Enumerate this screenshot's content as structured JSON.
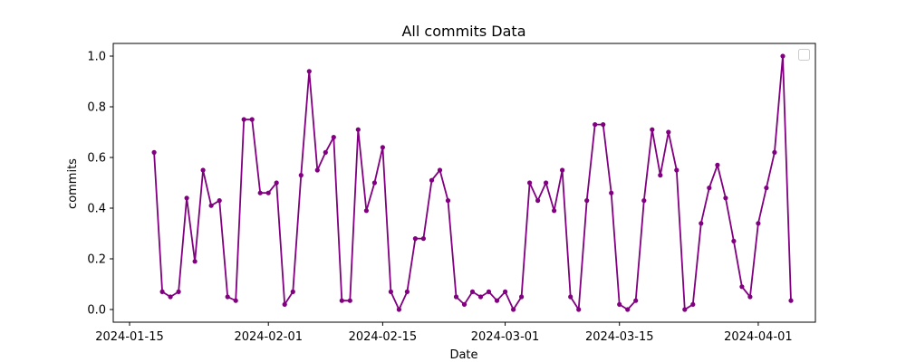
{
  "chart_data": {
    "type": "line",
    "title": "All commits Data",
    "xlabel": "Date",
    "ylabel": "commits",
    "x_start": "2024-01-18",
    "xlim": [
      "2024-01-13",
      "2024-04-08"
    ],
    "ylim": [
      -0.05,
      1.05
    ],
    "x_ticks": [
      "2024-01-15",
      "2024-02-01",
      "2024-02-15",
      "2024-03-01",
      "2024-03-15",
      "2024-04-01"
    ],
    "y_ticks": [
      "0.0",
      "0.2",
      "0.4",
      "0.6",
      "0.8",
      "1.0"
    ],
    "grid": false,
    "legend": {
      "position": "top-right",
      "entries": []
    },
    "series": [
      {
        "color": "#800080",
        "marker": "circle",
        "x": [
          "2024-01-18",
          "2024-01-19",
          "2024-01-20",
          "2024-01-21",
          "2024-01-22",
          "2024-01-23",
          "2024-01-24",
          "2024-01-25",
          "2024-01-26",
          "2024-01-27",
          "2024-01-28",
          "2024-01-29",
          "2024-01-30",
          "2024-01-31",
          "2024-02-01",
          "2024-02-02",
          "2024-02-03",
          "2024-02-04",
          "2024-02-05",
          "2024-02-06",
          "2024-02-07",
          "2024-02-08",
          "2024-02-09",
          "2024-02-10",
          "2024-02-11",
          "2024-02-12",
          "2024-02-13",
          "2024-02-14",
          "2024-02-15",
          "2024-02-16",
          "2024-02-17",
          "2024-02-18",
          "2024-02-19",
          "2024-02-20",
          "2024-02-21",
          "2024-02-22",
          "2024-02-23",
          "2024-02-24",
          "2024-02-25",
          "2024-02-26",
          "2024-02-27",
          "2024-02-28",
          "2024-02-29",
          "2024-03-01",
          "2024-03-02",
          "2024-03-03",
          "2024-03-04",
          "2024-03-05",
          "2024-03-06",
          "2024-03-07",
          "2024-03-08",
          "2024-03-09",
          "2024-03-10",
          "2024-03-11",
          "2024-03-12",
          "2024-03-13",
          "2024-03-14",
          "2024-03-15",
          "2024-03-16",
          "2024-03-17",
          "2024-03-18",
          "2024-03-19",
          "2024-03-20",
          "2024-03-21",
          "2024-03-22",
          "2024-03-23",
          "2024-03-24",
          "2024-03-25",
          "2024-03-26",
          "2024-03-27",
          "2024-03-28",
          "2024-03-29",
          "2024-03-30",
          "2024-03-31",
          "2024-04-01",
          "2024-04-02",
          "2024-04-03",
          "2024-04-04",
          "2024-04-05"
        ],
        "values": [
          0.62,
          0.07,
          0.05,
          0.07,
          0.44,
          0.19,
          0.55,
          0.41,
          0.43,
          0.05,
          0.035,
          0.75,
          0.75,
          0.46,
          0.46,
          0.5,
          0.02,
          0.07,
          0.53,
          0.94,
          0.55,
          0.62,
          0.68,
          0.035,
          0.035,
          0.71,
          0.39,
          0.5,
          0.64,
          0.07,
          0.0,
          0.07,
          0.28,
          0.28,
          0.51,
          0.55,
          0.43,
          0.05,
          0.02,
          0.07,
          0.05,
          0.07,
          0.035,
          0.07,
          0.0,
          0.05,
          0.5,
          0.43,
          0.5,
          0.39,
          0.55,
          0.05,
          0.0,
          0.43,
          0.73,
          0.73,
          0.46,
          0.02,
          0.0,
          0.035,
          0.43,
          0.71,
          0.53,
          0.7,
          0.55,
          0.0,
          0.02,
          0.34,
          0.48,
          0.57,
          0.44,
          0.27,
          0.09,
          0.05,
          0.34,
          0.48,
          0.62,
          1.0,
          0.035
        ]
      }
    ]
  }
}
